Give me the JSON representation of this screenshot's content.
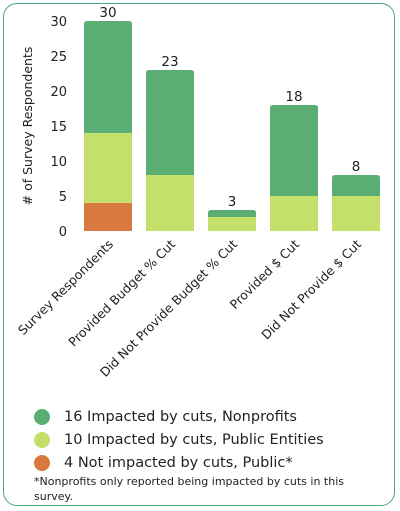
{
  "chart_data": {
    "type": "bar",
    "stacked": true,
    "title": "",
    "xlabel": "",
    "ylabel": "# of Survey Respondents",
    "ylim": [
      0,
      30
    ],
    "yticks": [
      0,
      5,
      10,
      15,
      20,
      25,
      30
    ],
    "grid": false,
    "categories": [
      "Survey Respondents",
      "Provided Budget % Cut",
      "Did Not Provide Budget % Cut",
      "Provided $ Cut",
      "Did Not Provide $ Cut"
    ],
    "totals": [
      30,
      23,
      3,
      18,
      8
    ],
    "series": [
      {
        "key": "public",
        "values": [
          4,
          0,
          0,
          0,
          0
        ],
        "color": "#d9783f"
      },
      {
        "key": "public_entities",
        "values": [
          10,
          8,
          2,
          5,
          5
        ],
        "color": "#c2e06a"
      },
      {
        "key": "nonprofits",
        "values": [
          16,
          15,
          1,
          13,
          3
        ],
        "color": "#5aae74"
      }
    ]
  },
  "legend": [
    {
      "label": "16 Impacted by cuts, Nonprofits",
      "color": "#5aae74"
    },
    {
      "label": "10 Impacted by cuts, Public Entities",
      "color": "#c2e06a"
    },
    {
      "label": "4 Not impacted by cuts, Public*",
      "color": "#d9783f"
    }
  ],
  "footnote": "*Nonprofits only reported being impacted by cuts in this survey."
}
